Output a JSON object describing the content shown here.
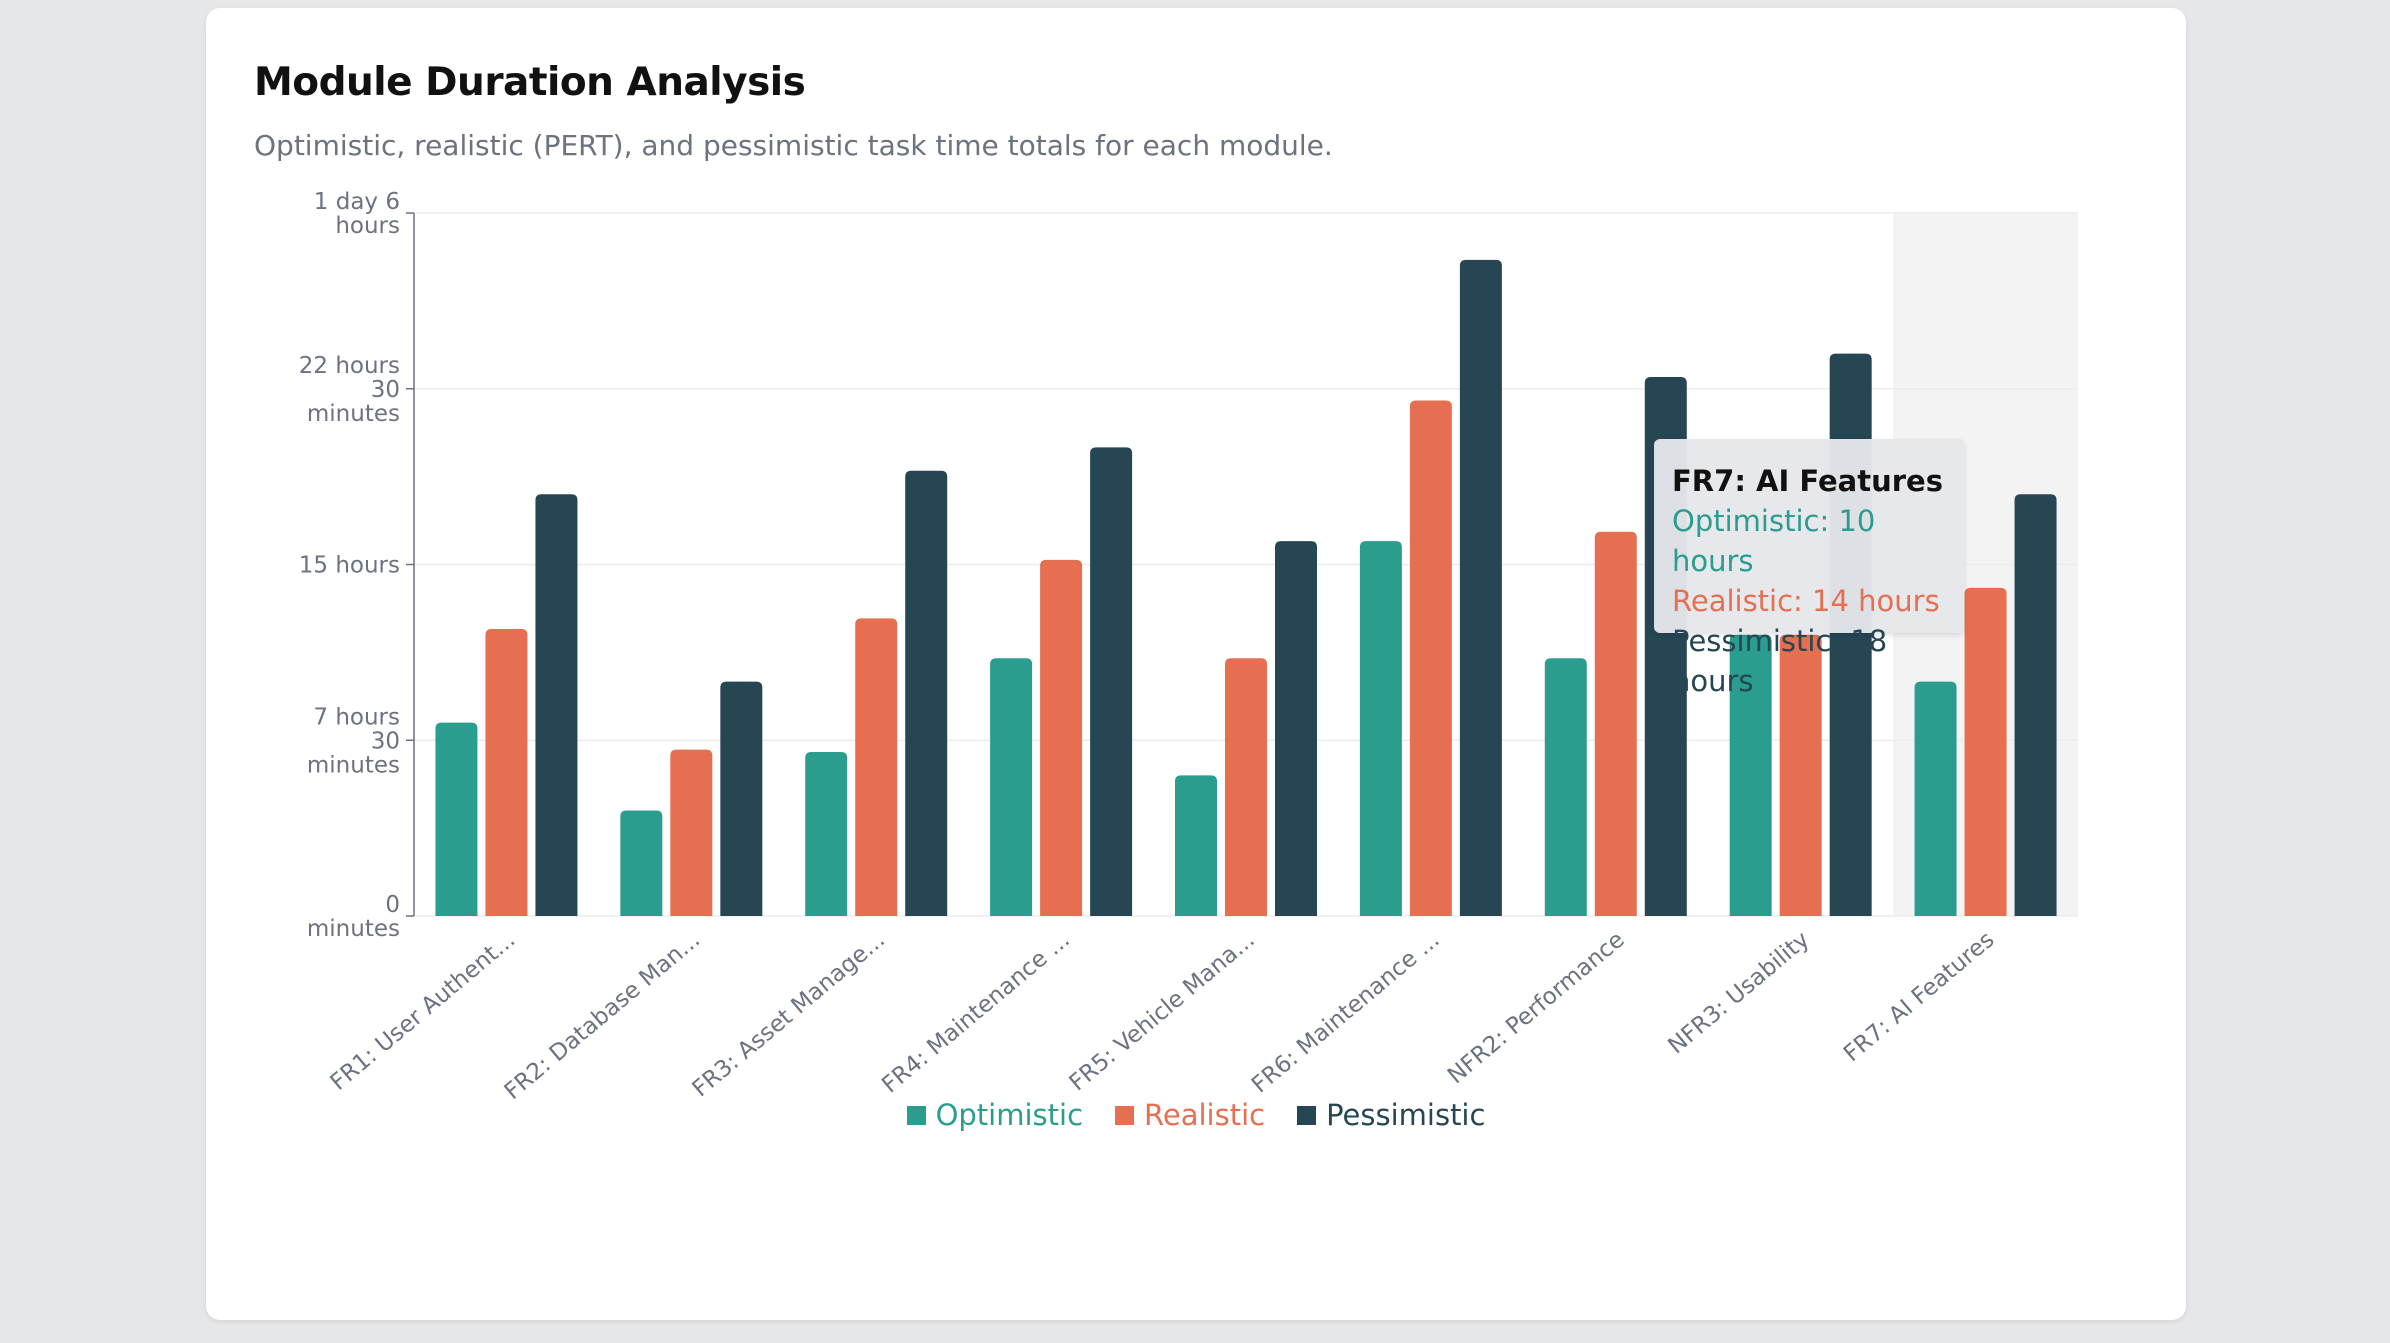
{
  "card": {
    "title": "Module Duration Analysis",
    "subtitle": "Optimistic, realistic (PERT), and pessimistic task time totals for each module."
  },
  "chart_data": {
    "type": "bar",
    "title": "Module Duration Analysis",
    "subtitle": "Optimistic, realistic (PERT), and pessimistic task time totals for each module.",
    "unit": "hours",
    "categories": [
      "FR1: User Authent...",
      "FR2: Database Man...",
      "FR3: Asset Manage...",
      "FR4: Maintenance ...",
      "FR5: Vehicle Mana...",
      "FR6: Maintenance ...",
      "NFR2: Performance",
      "NFR3: Usability",
      "FR7: AI Features"
    ],
    "series": [
      {
        "name": "Optimistic",
        "color": "#2a9d8f",
        "values": [
          8.25,
          4.5,
          7,
          11,
          6,
          16,
          11,
          12,
          10
        ]
      },
      {
        "name": "Realistic",
        "color": "#e76f51",
        "values": [
          12.25,
          7.1,
          12.7,
          15.2,
          11,
          22,
          16.4,
          12,
          14
        ]
      },
      {
        "name": "Pessimistic",
        "color": "#264653",
        "values": [
          18,
          10,
          19,
          20,
          16,
          28,
          23,
          24,
          18
        ]
      }
    ],
    "ylim": [
      0,
      30
    ],
    "yticks": [
      {
        "value": 0,
        "label": "0 minutes"
      },
      {
        "value": 7.5,
        "label": "7 hours 30 minutes"
      },
      {
        "value": 15,
        "label": "15 hours"
      },
      {
        "value": 22.5,
        "label": "22 hours 30 minutes"
      },
      {
        "value": 30,
        "label": "1 day 6 hours"
      }
    ],
    "grid": true,
    "legend_position": "bottom",
    "highlighted_category": 8
  },
  "tooltip": {
    "title": "FR7: AI Features",
    "lines": [
      {
        "text": "Optimistic: 10 hours",
        "color": "#2a9d8f"
      },
      {
        "text": "Realistic: 14 hours",
        "color": "#e76f51"
      },
      {
        "text": "Pessimistic: 18 hours",
        "color": "#264653"
      }
    ]
  }
}
